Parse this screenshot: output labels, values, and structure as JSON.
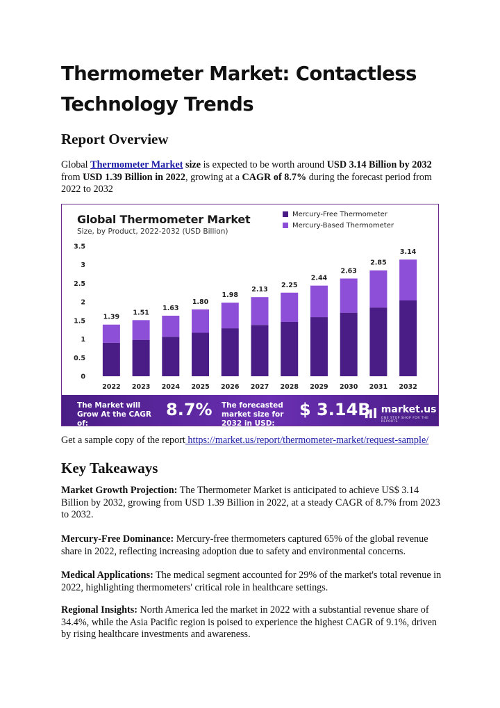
{
  "title": "Thermometer Market: Contactless Technology Trends",
  "overview": {
    "heading": "Report Overview",
    "p_global": "Global ",
    "p_link": "Thermometer Market",
    "p_size": " size",
    "p_1": " is expected to be worth around ",
    "p_b1": "USD 3.14 Billion by 2032",
    "p_2": " from ",
    "p_b2": "USD 1.39 Billion in 2022",
    "p_3": ", growing at a ",
    "p_b3": "CAGR of 8.7%",
    "p_4": " during the forecast period from 2022 to 2032"
  },
  "chart": {
    "title": "Global Thermometer Market",
    "subtitle": "Size, by Product, 2022-2032 (USD Billion)",
    "legend": [
      "Mercury-Free Thermometer",
      "Mercury-Based Thermometer"
    ],
    "banner": {
      "left": "The Market will Grow At the CAGR of:",
      "cagr": "8.7%",
      "middle": "The forecasted market size for 2032 in USD:",
      "value": "$ 3.14B",
      "logo": "market.us",
      "tagline": "ONE STOP SHOP FOR THE REPORTS"
    }
  },
  "chart_data": {
    "type": "bar",
    "stacked": true,
    "title": "Global Thermometer Market",
    "subtitle": "Size, by Product, 2022-2032 (USD Billion)",
    "categories": [
      "2022",
      "2023",
      "2024",
      "2025",
      "2026",
      "2027",
      "2028",
      "2029",
      "2030",
      "2031",
      "2032"
    ],
    "totals": [
      1.39,
      1.51,
      1.63,
      1.8,
      1.98,
      2.13,
      2.25,
      2.44,
      2.63,
      2.85,
      3.14
    ],
    "total_labels": [
      "1.39",
      "1.51",
      "1.63",
      "1.80",
      "1.98",
      "2.13",
      "2.25",
      "2.44",
      "2.63",
      "2.85",
      "3.14"
    ],
    "series": [
      {
        "name": "Mercury-Free Thermometer",
        "color": "#4a1d86",
        "values": [
          0.9,
          0.98,
          1.06,
          1.17,
          1.29,
          1.38,
          1.46,
          1.59,
          1.71,
          1.85,
          2.04
        ]
      },
      {
        "name": "Mercury-Based Thermometer",
        "color": "#8e4fd8",
        "values": [
          0.49,
          0.53,
          0.57,
          0.63,
          0.69,
          0.75,
          0.79,
          0.85,
          0.92,
          1.0,
          1.1
        ]
      }
    ],
    "yticks": [
      0,
      0.5,
      1,
      1.5,
      2,
      2.5,
      3,
      3.5
    ],
    "ytick_labels": [
      "0",
      "0.5",
      "1",
      "1.5",
      "2",
      "2.5",
      "3",
      "3.5"
    ],
    "ylim": [
      0,
      3.5
    ],
    "grid": false,
    "legend_position": "top-right"
  },
  "sample": {
    "text": "Get a sample copy of the report",
    "url": " https://market.us/report/thermometer-market/request-sample/ "
  },
  "takeaways": {
    "heading": "Key Takeaways",
    "items": [
      {
        "label": "Market Growth Projection:",
        "text": " The Thermometer Market is anticipated to achieve US$ 3.14 Billion by 2032, growing from USD 1.39 Billion in 2022, at a steady CAGR of 8.7% from 2023 to 2032."
      },
      {
        "label": "Mercury-Free Dominance:",
        "text": " Mercury-free thermometers captured 65% of the global revenue share in 2022, reflecting increasing adoption due to safety and environmental concerns."
      },
      {
        "label": "Medical Applications:",
        "text": " The medical segment accounted for 29% of the market's total revenue in 2022, highlighting thermometers' critical role in healthcare settings."
      },
      {
        "label": "Regional Insights:",
        "text": " North America led the market in 2022 with a substantial revenue share of 34.4%, while the Asia Pacific region is poised to experience the highest CAGR of 9.1%, driven by rising healthcare investments and awareness."
      }
    ]
  }
}
